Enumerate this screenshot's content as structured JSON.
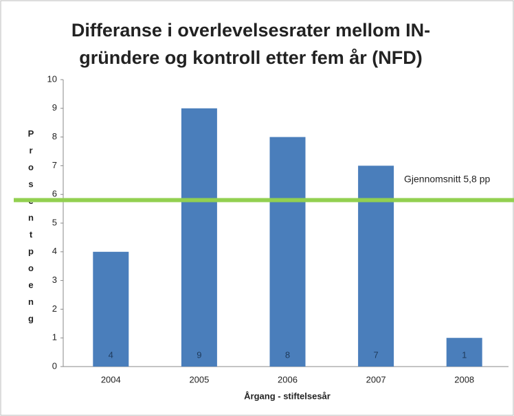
{
  "chart_data": {
    "type": "bar",
    "title": [
      "Differanse i overlevelsesrater mellom IN-",
      "gründere og kontroll etter fem år (NFD)"
    ],
    "categories": [
      "2004",
      "2005",
      "2006",
      "2007",
      "2008"
    ],
    "values": [
      4,
      9,
      8,
      7,
      1
    ],
    "color": "#4a7ebb",
    "ylim": [
      0,
      10
    ],
    "yticks": [
      0,
      1,
      2,
      3,
      4,
      5,
      6,
      7,
      8,
      9,
      10
    ],
    "grid": false,
    "y_label": "Prosentpoeng",
    "x_label": "Årgang - stiftelsesår",
    "reference_line": {
      "value": 5.8,
      "color": "#92d050",
      "label": "Gjennomsnitt 5,8 pp"
    }
  }
}
